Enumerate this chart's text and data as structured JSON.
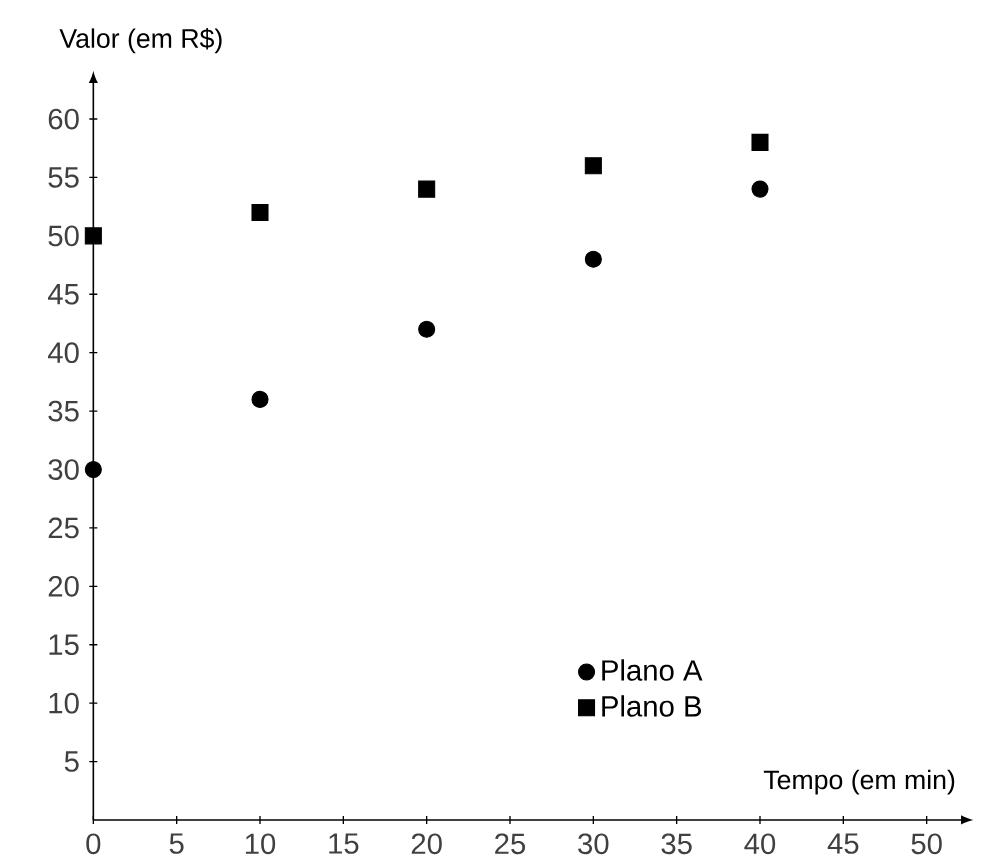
{
  "chart_data": {
    "type": "scatter",
    "xlabel": "Tempo (em min)",
    "ylabel": "Valor (em R$)",
    "x": [
      0,
      10,
      20,
      30,
      40
    ],
    "series": [
      {
        "name": "Plano A",
        "color": "#000000",
        "marker": "circle",
        "values": [
          30,
          36,
          42,
          48,
          54
        ]
      },
      {
        "name": "Plano B",
        "color": "#000000",
        "marker": "square",
        "values": [
          50,
          52,
          54,
          56,
          58
        ]
      }
    ],
    "xlim": [
      0,
      52
    ],
    "ylim": [
      0,
      63
    ],
    "xticks": [
      0,
      5,
      10,
      15,
      20,
      25,
      30,
      35,
      40,
      45,
      50
    ],
    "yticks": [
      5,
      10,
      15,
      20,
      25,
      30,
      35,
      40,
      45,
      50,
      55,
      60
    ],
    "grid": false,
    "legend": "bottom right"
  }
}
